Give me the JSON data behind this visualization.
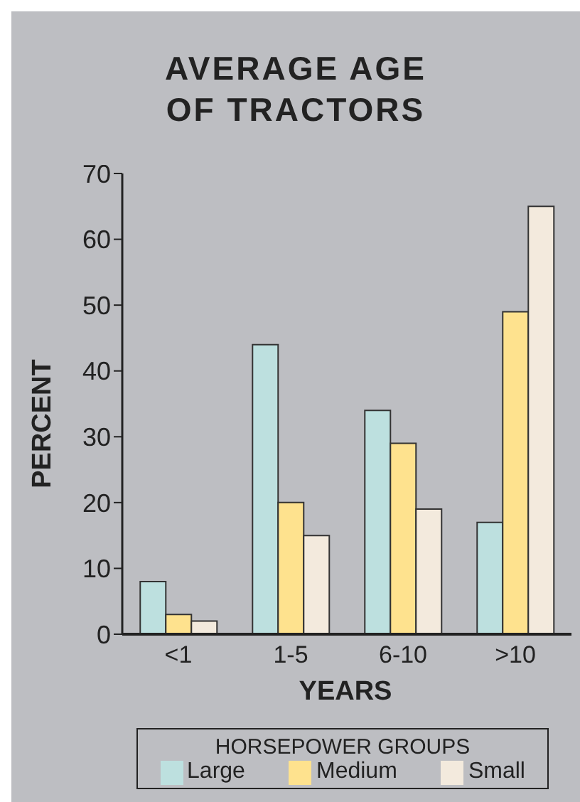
{
  "chart_data": {
    "type": "bar",
    "title": "AVERAGE AGE\nOF TRACTORS",
    "xlabel": "YEARS",
    "ylabel": "PERCENT",
    "legend_title": "HORSEPOWER GROUPS",
    "categories": [
      "<1",
      "1-5",
      "6-10",
      ">10"
    ],
    "series": [
      {
        "name": "Large",
        "color": "#bde0df",
        "values": [
          8,
          44,
          34,
          17
        ]
      },
      {
        "name": "Medium",
        "color": "#fee28e",
        "values": [
          3,
          20,
          29,
          49
        ]
      },
      {
        "name": "Small",
        "color": "#f3eadd",
        "values": [
          2,
          15,
          19,
          65
        ]
      }
    ],
    "ylim": [
      0,
      70
    ],
    "yticks": [
      0,
      10,
      20,
      30,
      40,
      50,
      60,
      70
    ],
    "grid": false,
    "legend": "bottom"
  }
}
